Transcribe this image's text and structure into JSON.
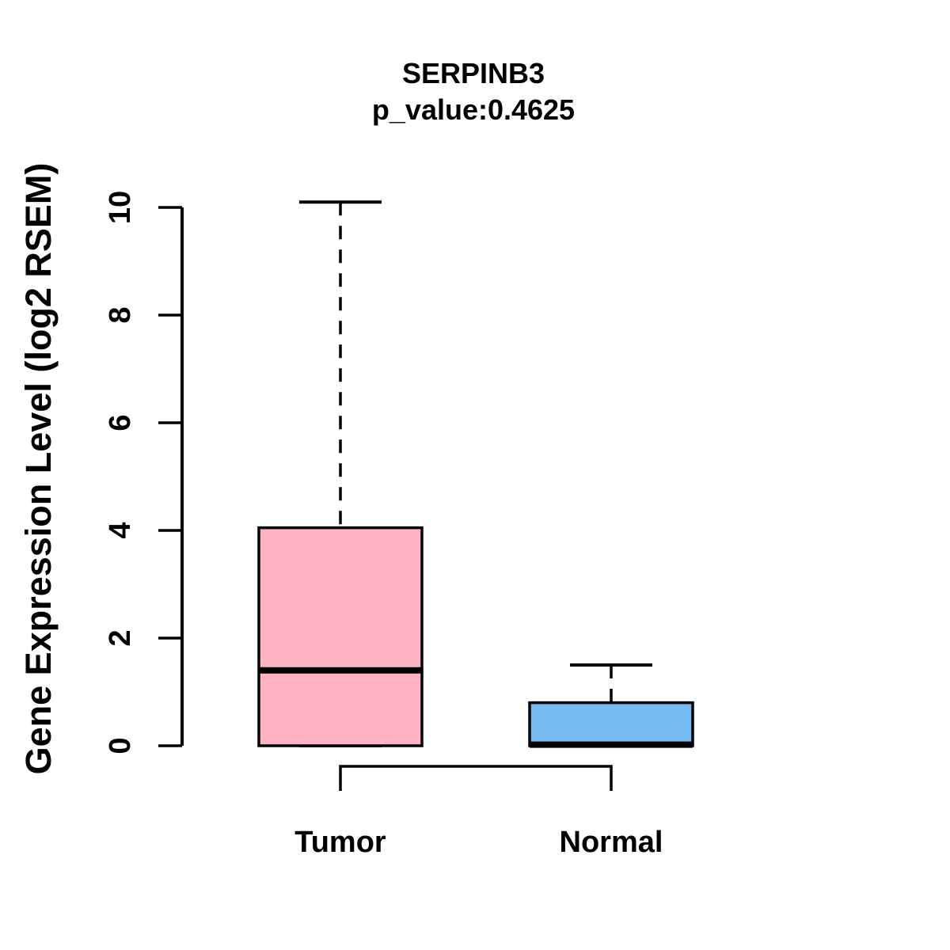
{
  "title": {
    "line1": "SERPINB3",
    "line2": "p_value:0.4625"
  },
  "chart_data": {
    "type": "boxplot",
    "title": "SERPINB3",
    "subtitle": "p_value:0.4625",
    "ylabel": "Gene Expression Level (log2 RSEM)",
    "xlabel": "",
    "ylim": [
      0,
      10
    ],
    "yticks": [
      0,
      2,
      4,
      6,
      8,
      10
    ],
    "grid": false,
    "legend": false,
    "categories": [
      "Tumor",
      "Normal"
    ],
    "series": [
      {
        "name": "Tumor",
        "color": "#FFB3C3",
        "whisker_low": 0,
        "q1": 0,
        "median": 1.4,
        "q3": 4.05,
        "whisker_high": 10.1
      },
      {
        "name": "Normal",
        "color": "#75BCF2",
        "whisker_low": 0,
        "q1": 0,
        "median": 0.02,
        "q3": 0.8,
        "whisker_high": 1.5
      }
    ],
    "comparison_bracket": {
      "from": "Tumor",
      "to": "Normal"
    },
    "colors": {
      "stroke": "#000000",
      "background": "#FFFFFF"
    }
  }
}
